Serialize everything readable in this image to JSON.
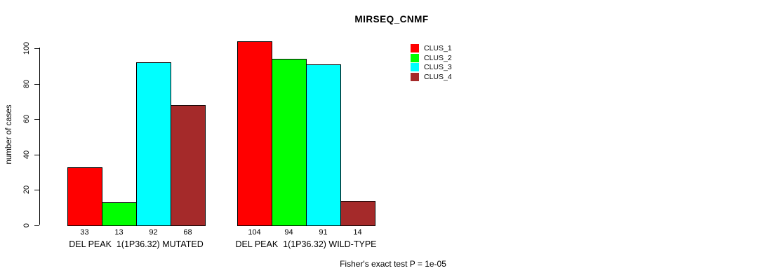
{
  "chart_data": {
    "type": "bar",
    "title": "MIRSEQ_CNMF",
    "ylabel": "number of cases",
    "xlabel": "",
    "categories": [
      "DEL PEAK  1(1P36.32) MUTATED",
      "DEL PEAK  1(1P36.32) WILD-TYPE"
    ],
    "series": [
      {
        "name": "CLUS_1",
        "color": "#ff0000",
        "values": [
          33,
          104
        ]
      },
      {
        "name": "CLUS_2",
        "color": "#00ff00",
        "values": [
          13,
          94
        ]
      },
      {
        "name": "CLUS_3",
        "color": "#00ffff",
        "values": [
          92,
          91
        ]
      },
      {
        "name": "CLUS_4",
        "color": "#a52a2a",
        "values": [
          68,
          14
        ]
      }
    ],
    "yticks": [
      0,
      20,
      40,
      60,
      80,
      100
    ],
    "ylim": [
      0,
      107
    ],
    "bar_value_labels_shown": true,
    "grid": false,
    "legend_position": "top-right",
    "annotation": "Fisher's exact test P = 1e-05"
  }
}
